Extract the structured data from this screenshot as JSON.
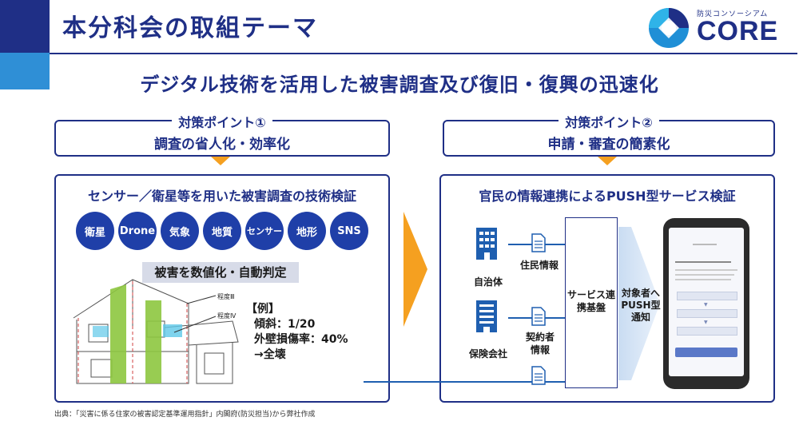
{
  "page_title": "本分科会の取組テーマ",
  "logo": {
    "sub": "防災コンソーシアム",
    "main": "CORE"
  },
  "headline": "デジタル技術を活用した被害調査及び復旧・復興の迅速化",
  "point1": {
    "title": "対策ポイント①",
    "subtitle": "調査の省人化・効率化"
  },
  "point2": {
    "title": "対策ポイント②",
    "subtitle": "申請・審査の簡素化"
  },
  "left_panel": {
    "heading": "センサー／衛星等を用いた被害調査の技術検証",
    "tags": [
      "衛星",
      "Drone",
      "気象",
      "地質",
      "センサー",
      "地形",
      "SNS"
    ],
    "banner": "被害を数値化・自動判定",
    "degree_labels": [
      "程度Ⅲ",
      "程度Ⅳ"
    ],
    "example_lines": [
      "【例】",
      "傾斜：1/20",
      "外壁損傷率：40%",
      "→全壊"
    ]
  },
  "right_panel": {
    "heading": "官民の情報連携によるPUSH型サービス検証",
    "entities": [
      "自治体",
      "保険会社"
    ],
    "docs": [
      "住民情報",
      "契約者情報"
    ],
    "hub": "サービス連携基盤",
    "notify": "対象者へPUSH型通知"
  },
  "source": "出典：「災害に係る住家の被害認定基準運用指針」内閣府(防災担当)から弊社作成",
  "colors": {
    "navy": "#1f2f86",
    "accent_blue": "#2f8fd6",
    "orange": "#f5a020",
    "tag_blue": "#1f3fa8"
  }
}
